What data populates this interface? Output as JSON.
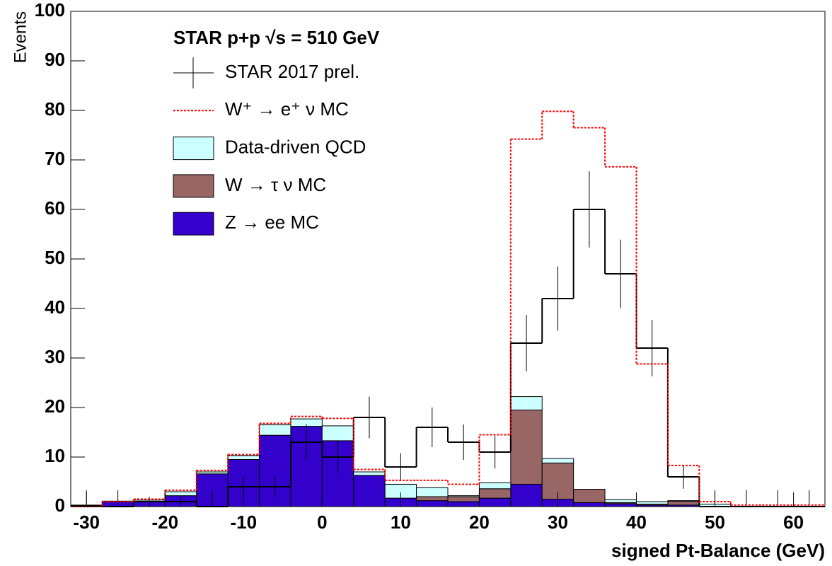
{
  "chart_data": {
    "type": "histogram",
    "title": "STAR p+p  √s = 510 GeV",
    "x_label": "signed Pt-Balance (GeV)",
    "y_label": "Events",
    "bins": [
      -32,
      -28,
      -24,
      -20,
      -16,
      -12,
      -8,
      -4,
      0,
      4,
      8,
      12,
      16,
      20,
      24,
      28,
      32,
      36,
      40,
      44,
      48,
      52,
      56,
      60,
      64
    ],
    "xlim": [
      -32,
      64
    ],
    "ylim": [
      0,
      100
    ],
    "xticks": [
      -30,
      -20,
      -10,
      0,
      10,
      20,
      30,
      40,
      50,
      60
    ],
    "yticks": [
      0,
      10,
      20,
      30,
      40,
      50,
      60,
      70,
      80,
      90,
      100
    ],
    "series": [
      {
        "name": "STAR 2017 prel.",
        "style": "data",
        "color": "#000000",
        "values": [
          0,
          0,
          1,
          1,
          0,
          4,
          4,
          13,
          10,
          18,
          8,
          16,
          13,
          11,
          33,
          42,
          60,
          47,
          32,
          6,
          0,
          0,
          0,
          0
        ],
        "errors": [
          3.3,
          3.3,
          1,
          1,
          3.3,
          2,
          2,
          3.6,
          3.2,
          4.2,
          2.8,
          4,
          3.6,
          3.3,
          5.7,
          6.5,
          7.7,
          6.9,
          5.7,
          2.4,
          3.3,
          3.3,
          3.3,
          3.3
        ]
      },
      {
        "name": "W⁺ → e⁺ ν MC",
        "style": "dashed",
        "color": "#ff0000",
        "values": [
          0,
          1,
          1.5,
          3.3,
          7.3,
          10.5,
          16.8,
          18.2,
          17.8,
          7.5,
          5.3,
          5.3,
          4.5,
          14.5,
          74.2,
          79.8,
          76.5,
          68.6,
          28.8,
          8.3,
          1,
          0.3,
          0.3,
          0.3
        ]
      },
      {
        "name": "Data-driven QCD",
        "style": "stack",
        "color": "#ccffff",
        "values": [
          0.1,
          0.1,
          0.3,
          0.8,
          0.4,
          0.8,
          2.1,
          1.5,
          3,
          0.7,
          2.8,
          1.8,
          0.2,
          1.2,
          2.7,
          0.9,
          0,
          0.6,
          0.5,
          0.1,
          0.5,
          0,
          0,
          0
        ]
      },
      {
        "name": "W → τ ν MC",
        "style": "stack",
        "color": "#996666",
        "values": [
          0,
          0,
          0,
          0,
          0,
          0,
          0,
          0,
          0,
          0,
          0,
          0.8,
          1,
          1.9,
          15,
          7.3,
          2.7,
          0.2,
          0.2,
          0.8,
          0,
          0,
          0,
          0
        ]
      },
      {
        "name": "Z → ee MC",
        "style": "stack",
        "color": "#3300cc",
        "values": [
          0.2,
          1,
          1,
          2.2,
          6.6,
          9.5,
          14.4,
          16.2,
          13.3,
          6.3,
          1.7,
          1.2,
          1,
          1.7,
          4.5,
          1.5,
          0.8,
          0.6,
          0.3,
          0.3,
          0,
          0,
          0,
          0
        ]
      }
    ]
  }
}
